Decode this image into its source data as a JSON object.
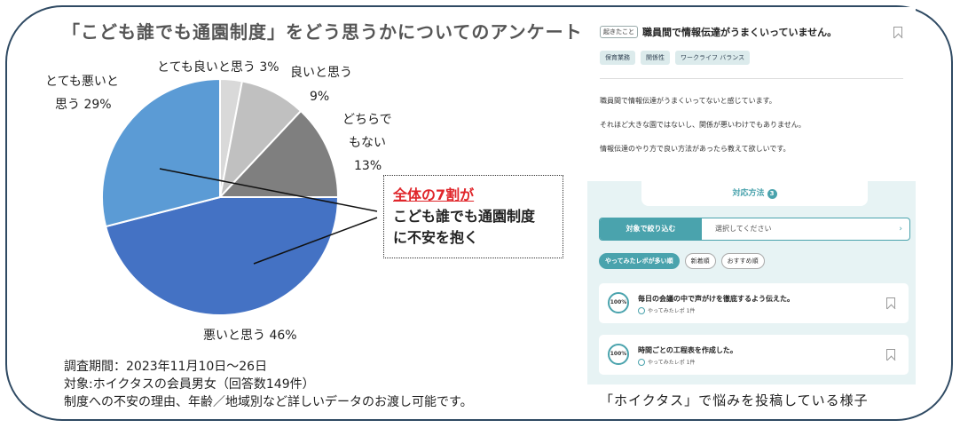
{
  "title": "「こども誰でも通園制度」をどう思うかについてのアンケート",
  "chart_data": {
    "type": "pie",
    "slices": [
      {
        "label": "とても良いと思う",
        "value": 3,
        "color": "#d9d9d9"
      },
      {
        "label": "良いと思う",
        "value": 9,
        "color": "#c0c0c0"
      },
      {
        "label": "どちらでもない",
        "value": 13,
        "color": "#7f7f7f"
      },
      {
        "label": "悪いと思う",
        "value": 46,
        "color": "#4472c4"
      },
      {
        "label": "とても悪いと思う",
        "value": 29,
        "color": "#5b9bd5"
      }
    ],
    "labels": {
      "very_good": "とても良いと思う 3%",
      "good_1": "良いと思う",
      "good_2": "9%",
      "neutral_1": "どちらで",
      "neutral_2": "もない",
      "neutral_3": "13%",
      "bad": "悪いと思う 46%",
      "very_bad_1": "とても悪いと",
      "very_bad_2": "思う 29%"
    }
  },
  "callout": {
    "highlight": "全体の7割が",
    "line2": "こども誰でも通園制度",
    "line3": "に不安を抱く"
  },
  "survey": {
    "period": "調査期間：2023年11月10日〜26日",
    "target": "対象:ホイクタスの会員男女（回答数149件）",
    "note": "制度への不安の理由、年齢／地域別など詳しいデータのお渡し可能です。"
  },
  "app": {
    "tag": "起きたこと",
    "question_title": "職員間で情報伝達がうまくいっていません。",
    "chips": [
      "保育業務",
      "関係性",
      "ワークライフ バランス"
    ],
    "body": [
      "職員間で情報伝達がうまくいってないと感じています。",
      "それほど大きな園ではないし、関係が悪いわけでもありません。",
      "情報伝達のやり方で良い方法があったら教えて欲しいです。"
    ],
    "panel_title": "対応方法",
    "panel_count": "3",
    "filter_button": "対象で絞り込む",
    "filter_placeholder": "選択してください",
    "filter_chevron": "›",
    "sorts": [
      "やってみたレポが多い順",
      "新着順",
      "おすすめ順"
    ],
    "cards": [
      {
        "percent": "100%",
        "title": "毎日の会議の中で声がけを徹底するよう伝えた。",
        "sub": "やってみたレポ 1件"
      },
      {
        "percent": "100%",
        "title": "時間ごとの工程表を作成した。",
        "sub": "やってみたレポ 1件"
      }
    ]
  },
  "caption": "「ホイクタス」で悩みを投稿している様子"
}
